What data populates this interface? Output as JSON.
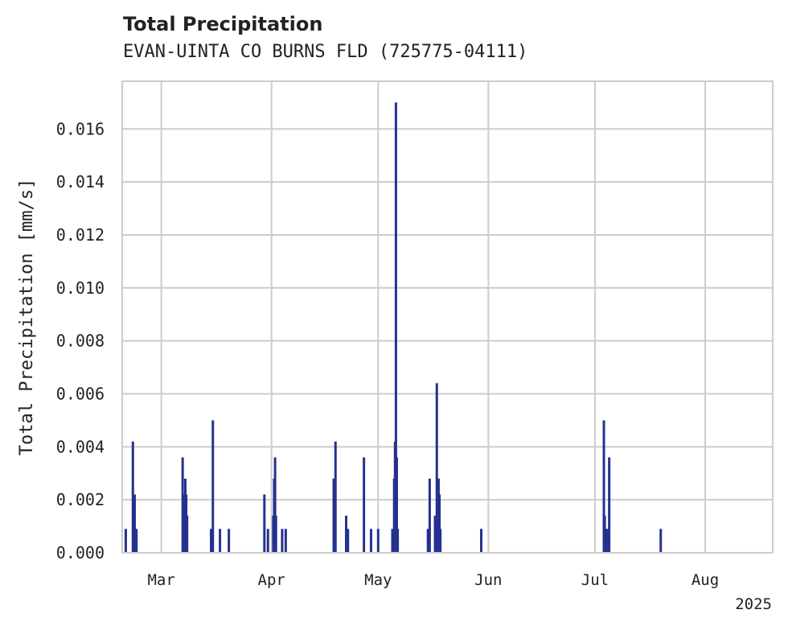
{
  "chart_data": {
    "type": "bar",
    "title": "Total Precipitation",
    "subtitle": "EVAN-UINTA CO BURNS FLD (725775-04111)",
    "ylabel": "Total Precipitation [mm/s]",
    "xlabel": "",
    "ylim": [
      0,
      0.0178
    ],
    "xlim": [
      "2025-02-18",
      "2025-08-20"
    ],
    "grid": true,
    "yticks": [
      0.0,
      0.002,
      0.004,
      0.006,
      0.008,
      0.01,
      0.012,
      0.014,
      0.016
    ],
    "ytick_labels": [
      "0.000",
      "0.002",
      "0.004",
      "0.006",
      "0.008",
      "0.010",
      "0.012",
      "0.014",
      "0.016"
    ],
    "xticks": [
      {
        "date": "2025-03-01",
        "label": "Mar"
      },
      {
        "date": "2025-04-01",
        "label": "Apr"
      },
      {
        "date": "2025-05-01",
        "label": "May"
      },
      {
        "date": "2025-06-01",
        "label": "Jun"
      },
      {
        "date": "2025-07-01",
        "label": "Jul"
      },
      {
        "date": "2025-08-01",
        "label": "Aug"
      }
    ],
    "year_label": "2025",
    "series": [
      {
        "color": "#25318f",
        "points": [
          {
            "x": "2025-02-19",
            "y": 0.0009
          },
          {
            "x": "2025-02-21 00:00",
            "y": 0.0042
          },
          {
            "x": "2025-02-21 06:00",
            "y": 0.0014
          },
          {
            "x": "2025-02-21 12:00",
            "y": 0.0022
          },
          {
            "x": "2025-02-22",
            "y": 0.0009
          },
          {
            "x": "2025-03-07 00:00",
            "y": 0.0036
          },
          {
            "x": "2025-03-07 06:00",
            "y": 0.0014
          },
          {
            "x": "2025-03-07 12:00",
            "y": 0.0022
          },
          {
            "x": "2025-03-07 18:00",
            "y": 0.0028
          },
          {
            "x": "2025-03-08 00:00",
            "y": 0.0022
          },
          {
            "x": "2025-03-08 06:00",
            "y": 0.0014
          },
          {
            "x": "2025-03-15",
            "y": 0.0009
          },
          {
            "x": "2025-03-15 12:00",
            "y": 0.005
          },
          {
            "x": "2025-03-17 12:00",
            "y": 0.0009
          },
          {
            "x": "2025-03-20",
            "y": 0.0009
          },
          {
            "x": "2025-03-30",
            "y": 0.0022
          },
          {
            "x": "2025-03-31",
            "y": 0.0009
          },
          {
            "x": "2025-04-01 12:00",
            "y": 0.0014
          },
          {
            "x": "2025-04-01 18:00",
            "y": 0.0028
          },
          {
            "x": "2025-04-02 00:00",
            "y": 0.0036
          },
          {
            "x": "2025-04-02 06:00",
            "y": 0.0014
          },
          {
            "x": "2025-04-04",
            "y": 0.0009
          },
          {
            "x": "2025-04-05",
            "y": 0.0009
          },
          {
            "x": "2025-04-18 12:00",
            "y": 0.0028
          },
          {
            "x": "2025-04-19",
            "y": 0.0042
          },
          {
            "x": "2025-04-22",
            "y": 0.0014
          },
          {
            "x": "2025-04-22 12:00",
            "y": 0.0009
          },
          {
            "x": "2025-04-27",
            "y": 0.0036
          },
          {
            "x": "2025-04-29",
            "y": 0.0009
          },
          {
            "x": "2025-05-01",
            "y": 0.0009
          },
          {
            "x": "2025-05-05",
            "y": 0.0009
          },
          {
            "x": "2025-05-05 12:00",
            "y": 0.0028
          },
          {
            "x": "2025-05-05 18:00",
            "y": 0.0042
          },
          {
            "x": "2025-05-06 00:00",
            "y": 0.017
          },
          {
            "x": "2025-05-06 06:00",
            "y": 0.0036
          },
          {
            "x": "2025-05-06 12:00",
            "y": 0.0009
          },
          {
            "x": "2025-05-15",
            "y": 0.0009
          },
          {
            "x": "2025-05-15 12:00",
            "y": 0.0028
          },
          {
            "x": "2025-05-17",
            "y": 0.0014
          },
          {
            "x": "2025-05-17 12:00",
            "y": 0.0064
          },
          {
            "x": "2025-05-17 18:00",
            "y": 0.0028
          },
          {
            "x": "2025-05-18 00:00",
            "y": 0.0028
          },
          {
            "x": "2025-05-18 06:00",
            "y": 0.0022
          },
          {
            "x": "2025-05-18 12:00",
            "y": 0.0009
          },
          {
            "x": "2025-05-30",
            "y": 0.0009
          },
          {
            "x": "2025-07-03 12:00",
            "y": 0.005
          },
          {
            "x": "2025-07-03 18:00",
            "y": 0.0014
          },
          {
            "x": "2025-07-04 00:00",
            "y": 0.0009
          },
          {
            "x": "2025-07-04 12:00",
            "y": 0.0009
          },
          {
            "x": "2025-07-05",
            "y": 0.0036
          },
          {
            "x": "2025-07-19 12:00",
            "y": 0.0009
          }
        ]
      }
    ]
  }
}
